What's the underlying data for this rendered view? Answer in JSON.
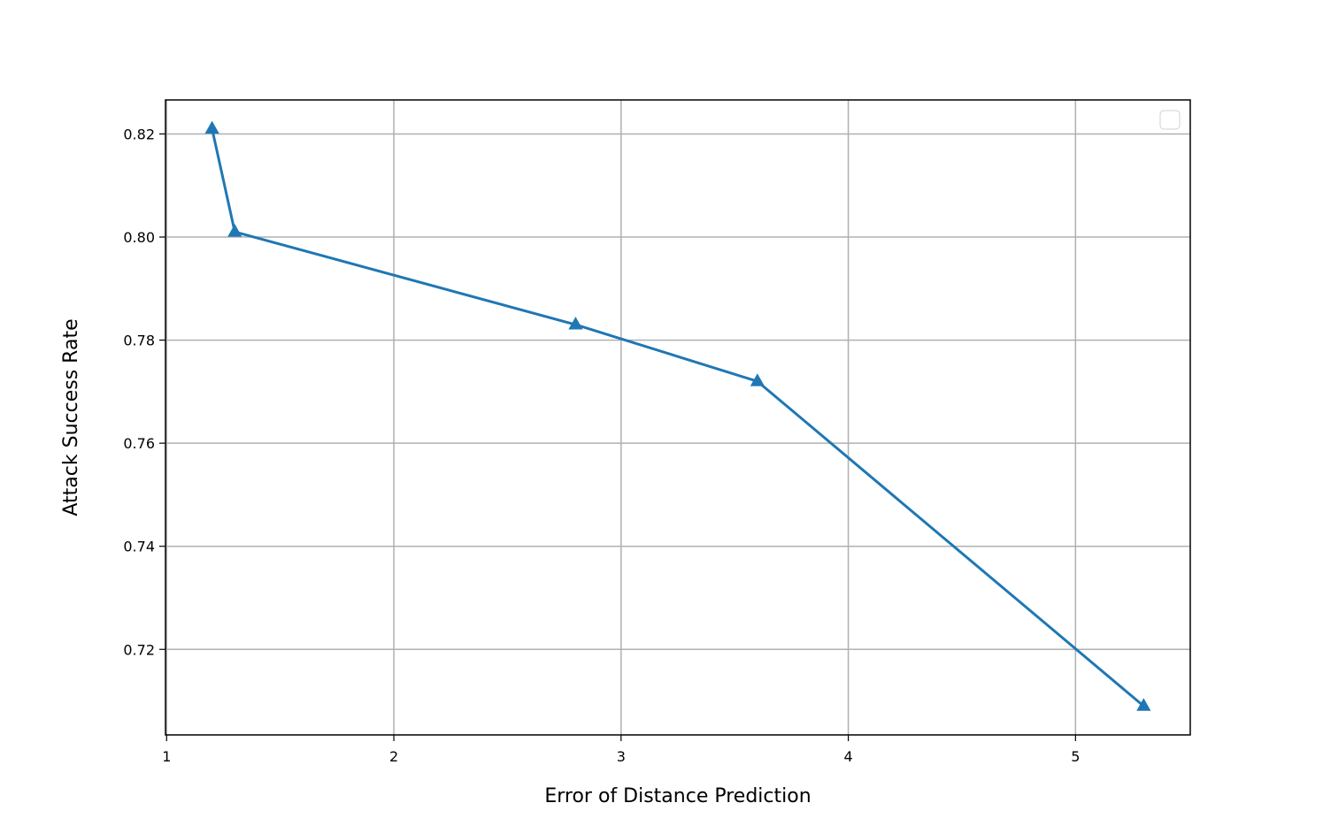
{
  "chart_data": {
    "type": "line",
    "x_label": "Error of Distance Prediction",
    "y_label": "Attack Success Rate",
    "series": [
      {
        "color": "#1f77b4",
        "x": [
          1.2,
          1.3,
          2.8,
          3.6,
          5.3
        ],
        "values": [
          0.821,
          0.801,
          0.783,
          0.772,
          0.709
        ]
      }
    ],
    "xlim": [
      0.995,
      5.505
    ],
    "xticks": [
      1,
      2,
      3,
      4,
      5
    ],
    "ylim": [
      0.7034,
      0.8266
    ],
    "yticks": [
      {
        "value": 0.72,
        "label": "0.72"
      },
      {
        "value": 0.74,
        "label": "0.74"
      },
      {
        "value": 0.76,
        "label": "0.76"
      },
      {
        "value": 0.78,
        "label": "0.78"
      },
      {
        "value": 0.8,
        "label": "0.80"
      },
      {
        "value": 0.82,
        "label": "0.82"
      }
    ],
    "grid": true
  }
}
